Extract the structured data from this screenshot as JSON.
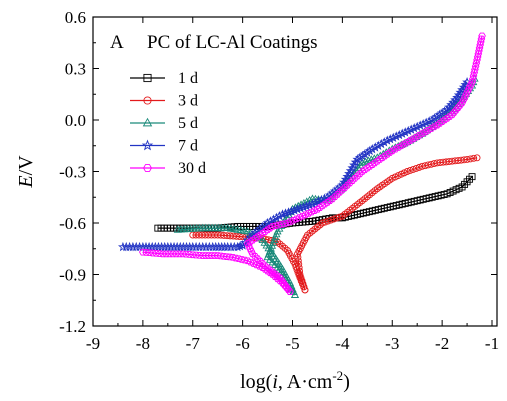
{
  "chart_data": {
    "type": "line",
    "panel_label": "A",
    "title": "PC of LC-Al Coatings",
    "xlabel": {
      "pre": "log(",
      "italic": "i",
      "mid": ", A·cm",
      "sup": "-2",
      "post": ")"
    },
    "ylabel": {
      "italic": "E",
      "post": "/V"
    },
    "xlim": [
      -9,
      -0.9
    ],
    "ylim": [
      -1.2,
      0.6
    ],
    "xticks": [
      -9,
      -8,
      -7,
      -6,
      -5,
      -4,
      -3,
      -2,
      -1
    ],
    "xtick_labels": [
      "-9",
      "-8",
      "-7",
      "-6",
      "-5",
      "-4",
      "-3",
      "-2",
      "-1"
    ],
    "yticks": [
      -1.2,
      -0.9,
      -0.6,
      -0.3,
      0.0,
      0.3,
      0.6
    ],
    "ytick_labels": [
      "-1.2",
      "-0.9",
      "-0.6",
      "-0.3",
      "0.0",
      "0.3",
      "0.6"
    ],
    "grid": false,
    "legend_position": "upper-left",
    "series": [
      {
        "name": "1 d",
        "color": "#000000",
        "marker": "square",
        "branches": [
          {
            "x": [
              -7.7,
              -7.0,
              -6.5,
              -6.1,
              -5.8,
              -5.6,
              -5.5
            ],
            "y": [
              -0.63,
              -0.63,
              -0.63,
              -0.62,
              -0.62,
              -0.62,
              -0.62
            ]
          },
          {
            "x": [
              -5.5,
              -5.0,
              -4.6,
              -4.2,
              -4.0,
              -3.7,
              -3.4,
              -3.1,
              -2.8,
              -2.5,
              -2.2,
              -1.9,
              -1.6,
              -1.4
            ],
            "y": [
              -0.62,
              -0.6,
              -0.59,
              -0.57,
              -0.57,
              -0.55,
              -0.53,
              -0.51,
              -0.49,
              -0.47,
              -0.45,
              -0.43,
              -0.39,
              -0.33
            ]
          }
        ]
      },
      {
        "name": "3 d",
        "color": "#e31a1c",
        "marker": "circle",
        "branches": [
          {
            "x": [
              -7.0,
              -6.5,
              -6.0,
              -5.6,
              -5.3,
              -5.1,
              -4.95,
              -4.85,
              -4.75
            ],
            "y": [
              -0.67,
              -0.67,
              -0.68,
              -0.69,
              -0.71,
              -0.76,
              -0.84,
              -0.92,
              -0.99
            ]
          },
          {
            "x": [
              -4.75,
              -4.85,
              -4.9,
              -4.7,
              -4.4,
              -4.0,
              -3.6,
              -3.3,
              -3.0,
              -2.7,
              -2.4,
              -2.1,
              -1.8,
              -1.5,
              -1.3
            ],
            "y": [
              -0.99,
              -0.9,
              -0.78,
              -0.67,
              -0.6,
              -0.56,
              -0.47,
              -0.4,
              -0.34,
              -0.3,
              -0.27,
              -0.25,
              -0.24,
              -0.23,
              -0.22
            ]
          }
        ]
      },
      {
        "name": "5 d",
        "color": "#1b8a7a",
        "marker": "triangle",
        "branches": [
          {
            "x": [
              -7.3,
              -6.8,
              -6.3,
              -5.9,
              -5.6,
              -5.4,
              -5.2,
              -5.05,
              -4.95
            ],
            "y": [
              -0.64,
              -0.63,
              -0.63,
              -0.65,
              -0.7,
              -0.78,
              -0.87,
              -0.95,
              -1.02
            ]
          },
          {
            "x": [
              -4.95,
              -5.1,
              -5.3,
              -5.5,
              -5.3,
              -5.0,
              -4.6,
              -4.3,
              -4.0,
              -3.6,
              -3.3,
              -3.0,
              -2.7,
              -2.4,
              -2.1,
              -1.8,
              -1.6,
              -1.4,
              -1.35
            ],
            "y": [
              -1.02,
              -0.95,
              -0.86,
              -0.8,
              -0.65,
              -0.52,
              -0.46,
              -0.47,
              -0.4,
              -0.25,
              -0.22,
              -0.17,
              -0.13,
              -0.08,
              -0.02,
              0.05,
              0.12,
              0.2,
              0.24
            ]
          }
        ]
      },
      {
        "name": "7 d",
        "color": "#2234c4",
        "marker": "star",
        "branches": [
          {
            "x": [
              -8.4,
              -8.0,
              -7.5,
              -7.0,
              -6.6,
              -6.3,
              -6.1,
              -6.0
            ],
            "y": [
              -0.74,
              -0.74,
              -0.74,
              -0.74,
              -0.74,
              -0.74,
              -0.74,
              -0.73
            ]
          },
          {
            "x": [
              -6.0,
              -5.8,
              -5.5,
              -5.2,
              -4.9,
              -4.6,
              -4.3,
              -4.0,
              -3.7,
              -3.4,
              -3.1,
              -2.8,
              -2.5,
              -2.2,
              -1.9,
              -1.7,
              -1.5
            ],
            "y": [
              -0.73,
              -0.67,
              -0.6,
              -0.55,
              -0.52,
              -0.49,
              -0.45,
              -0.38,
              -0.23,
              -0.17,
              -0.12,
              -0.08,
              -0.04,
              0.0,
              0.06,
              0.13,
              0.22
            ]
          }
        ]
      },
      {
        "name": "30 d",
        "color": "#ff00ff",
        "marker": "hexagon",
        "branches": [
          {
            "x": [
              -8.0,
              -7.6,
              -7.2,
              -6.8,
              -6.5,
              -6.2,
              -5.9,
              -5.6,
              -5.4,
              -5.2,
              -5.05
            ],
            "y": [
              -0.77,
              -0.78,
              -0.78,
              -0.79,
              -0.79,
              -0.8,
              -0.82,
              -0.86,
              -0.9,
              -0.95,
              -1.0
            ]
          },
          {
            "x": [
              -5.05,
              -5.25,
              -5.55,
              -5.8,
              -5.9,
              -5.7,
              -5.4,
              -5.1,
              -4.8,
              -4.5,
              -4.2,
              -3.9,
              -3.6,
              -3.3,
              -3.0,
              -2.7,
              -2.4,
              -2.1,
              -1.8,
              -1.6,
              -1.4,
              -1.3,
              -1.2
            ],
            "y": [
              -1.0,
              -0.92,
              -0.85,
              -0.78,
              -0.72,
              -0.68,
              -0.62,
              -0.6,
              -0.56,
              -0.52,
              -0.46,
              -0.38,
              -0.3,
              -0.24,
              -0.18,
              -0.13,
              -0.08,
              -0.03,
              0.03,
              0.1,
              0.22,
              0.35,
              0.49
            ]
          }
        ]
      }
    ]
  }
}
